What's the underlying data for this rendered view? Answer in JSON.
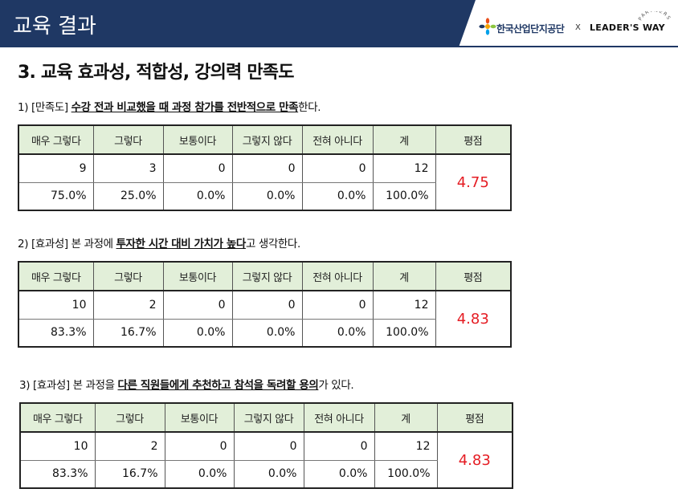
{
  "header": {
    "title": "교육 결과",
    "logo_kicox_text": "한국산업단지공단",
    "logo_separator": "X",
    "logo_leaders_text": "LEADER'S WAY",
    "logo_partners_text": "PARTNERS"
  },
  "section_title": "3. 교육 효과성, 적합성, 강의력 만족도",
  "columns": [
    "매우 그렇다",
    "그렇다",
    "보통이다",
    "그렇지 않다",
    "전혀 아니다",
    "계",
    "평점"
  ],
  "questions": [
    {
      "prefix": "1) [만족도] ",
      "emphasis": "수강 전과 비교했을 때 과정 참가를 전반적으로 만족",
      "suffix": "한다.",
      "counts": [
        "9",
        "3",
        "0",
        "0",
        "0",
        "12"
      ],
      "percents": [
        "75.0%",
        "25.0%",
        "0.0%",
        "0.0%",
        "0.0%",
        "100.0%"
      ],
      "score": "4.75"
    },
    {
      "prefix": "2) [효과성] 본 과정에 ",
      "emphasis": "투자한 시간 대비 가치가 높다",
      "suffix": "고 생각한다.",
      "counts": [
        "10",
        "2",
        "0",
        "0",
        "0",
        "12"
      ],
      "percents": [
        "83.3%",
        "16.7%",
        "0.0%",
        "0.0%",
        "0.0%",
        "100.0%"
      ],
      "score": "4.83"
    },
    {
      "prefix": "3) [효과성] 본 과정을 ",
      "emphasis": "다른 직원들에게 추천하고 참석을 독려할 용의",
      "suffix": "가 있다.",
      "counts": [
        "10",
        "2",
        "0",
        "0",
        "0",
        "12"
      ],
      "percents": [
        "83.3%",
        "16.7%",
        "0.0%",
        "0.0%",
        "0.0%",
        "100.0%"
      ],
      "score": "4.83"
    }
  ],
  "colors": {
    "banner": "#1f3864",
    "table_header": "#e2efd9",
    "score": "#e51c23"
  }
}
